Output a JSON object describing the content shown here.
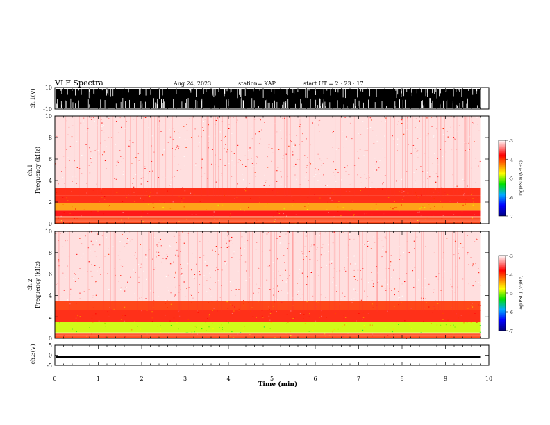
{
  "header": {
    "title": "VLF Spectra",
    "date": "Aug.24, 2023",
    "station": "station= KAP",
    "start_ut": "start  UT =   2 : 23 : 17"
  },
  "colorbar": {
    "label": "log(PSD) (V²/Hz)",
    "ticks": [
      "-3",
      "-4",
      "-5",
      "-6",
      "-7"
    ],
    "range": [
      -7,
      -3
    ],
    "colors": [
      "#000080",
      "#0000ff",
      "#00aaff",
      "#00e000",
      "#ffff00",
      "#ff8000",
      "#ff0000",
      "#ffffff"
    ]
  },
  "chart_data": [
    {
      "type": "line",
      "name": "ch1-waveform",
      "ylabel": "ch.1(V)",
      "ylim": [
        -10,
        10
      ],
      "yticks": [
        "10",
        "-10"
      ],
      "xlim": [
        0,
        10
      ],
      "description_values": "dense saturated waveform spanning roughly -10 to 10 V from 0 to ~9.8 min"
    },
    {
      "type": "heatmap",
      "name": "ch1-spectrogram",
      "ylabel": "ch.1\nFrequency (kHz)",
      "ylim": [
        0,
        10
      ],
      "yticks": [
        "0",
        "2",
        "4",
        "6",
        "8",
        "10"
      ],
      "xlim": [
        0,
        10
      ],
      "x_end": 9.8,
      "bands": [
        {
          "f_low": 0,
          "f_high": 0.7,
          "level": -4.0
        },
        {
          "f_low": 0.7,
          "f_high": 1.2,
          "level": -3.8
        },
        {
          "f_low": 1.2,
          "f_high": 1.9,
          "level": -4.4
        },
        {
          "f_low": 1.9,
          "f_high": 2.6,
          "level": -3.9
        },
        {
          "f_low": 2.6,
          "f_high": 3.3,
          "level": -3.9
        },
        {
          "f_low": 3.3,
          "f_high": 10,
          "level": -3.4
        }
      ]
    },
    {
      "type": "heatmap",
      "name": "ch2-spectrogram",
      "ylabel": "ch.2\nFrequency (kHz)",
      "ylim": [
        0,
        10
      ],
      "yticks": [
        "0",
        "2",
        "4",
        "6",
        "8",
        "10"
      ],
      "xlim": [
        0,
        10
      ],
      "x_end": 9.8,
      "bands": [
        {
          "f_low": 0,
          "f_high": 0.5,
          "level": -4.0
        },
        {
          "f_low": 0.5,
          "f_high": 1.5,
          "level": -4.9
        },
        {
          "f_low": 1.5,
          "f_high": 2.6,
          "level": -3.9
        },
        {
          "f_low": 2.6,
          "f_high": 3.5,
          "level": -4.0
        },
        {
          "f_low": 3.5,
          "f_high": 10,
          "level": -3.4
        }
      ]
    },
    {
      "type": "line",
      "name": "ch3-waveform",
      "ylabel": "ch.3(V)",
      "ylim": [
        -5,
        5
      ],
      "yticks": [
        "5",
        "0",
        "-5"
      ],
      "xlim": [
        0,
        10
      ],
      "description_values": "narrow band around roughly -1 V from 0 to ~9.8 min"
    }
  ],
  "xaxis": {
    "label": "Time (min)",
    "ticks": [
      "0",
      "1",
      "2",
      "3",
      "4",
      "5",
      "6",
      "7",
      "8",
      "9",
      "10"
    ]
  }
}
